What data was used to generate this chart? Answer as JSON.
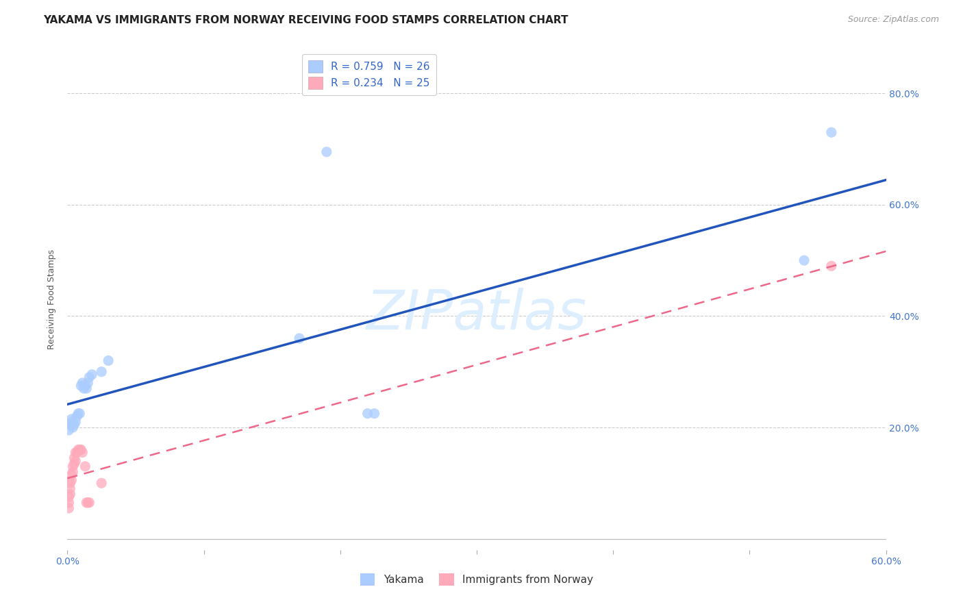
{
  "title": "YAKAMA VS IMMIGRANTS FROM NORWAY RECEIVING FOOD STAMPS CORRELATION CHART",
  "source": "Source: ZipAtlas.com",
  "ylabel": "Receiving Food Stamps",
  "background_color": "#ffffff",
  "watermark": "ZIPatlas",
  "watermark_color": "#ddeeff",
  "yakama_color": "#aaccff",
  "norway_color": "#ffaabb",
  "yakama_line_color": "#2255bb",
  "norway_line_color": "#ee6688",
  "legend_yakama_label": "R = 0.759   N = 26",
  "legend_norway_label": "R = 0.234   N = 25",
  "title_fontsize": 11,
  "axis_label_fontsize": 9,
  "tick_fontsize": 10,
  "legend_fontsize": 11,
  "scatter_size": 120,
  "xlim": [
    0.0,
    0.6
  ],
  "ylim": [
    -0.02,
    0.88
  ],
  "yakama_x": [
    0.001,
    0.002,
    0.003,
    0.003,
    0.004,
    0.005,
    0.006,
    0.007,
    0.008,
    0.009,
    0.01,
    0.011,
    0.012,
    0.013,
    0.014,
    0.015,
    0.016,
    0.018,
    0.025,
    0.03,
    0.17,
    0.19,
    0.22,
    0.225,
    0.54,
    0.56
  ],
  "yakama_y": [
    0.195,
    0.205,
    0.21,
    0.215,
    0.2,
    0.205,
    0.21,
    0.22,
    0.225,
    0.225,
    0.275,
    0.28,
    0.27,
    0.275,
    0.27,
    0.28,
    0.29,
    0.295,
    0.3,
    0.32,
    0.36,
    0.695,
    0.225,
    0.225,
    0.5,
    0.73
  ],
  "norway_x": [
    0.001,
    0.001,
    0.001,
    0.002,
    0.002,
    0.002,
    0.003,
    0.003,
    0.004,
    0.004,
    0.005,
    0.005,
    0.006,
    0.006,
    0.007,
    0.008,
    0.009,
    0.01,
    0.011,
    0.013,
    0.014,
    0.015,
    0.016,
    0.025,
    0.56
  ],
  "norway_y": [
    0.055,
    0.065,
    0.075,
    0.08,
    0.09,
    0.1,
    0.105,
    0.115,
    0.12,
    0.13,
    0.135,
    0.145,
    0.14,
    0.155,
    0.155,
    0.16,
    0.16,
    0.16,
    0.155,
    0.13,
    0.065,
    0.065,
    0.065,
    0.1,
    0.49
  ],
  "grid_yticks": [
    0.0,
    0.2,
    0.4,
    0.6,
    0.8
  ],
  "grid_ytick_labels": [
    "",
    "20.0%",
    "40.0%",
    "60.0%",
    "80.0%"
  ]
}
